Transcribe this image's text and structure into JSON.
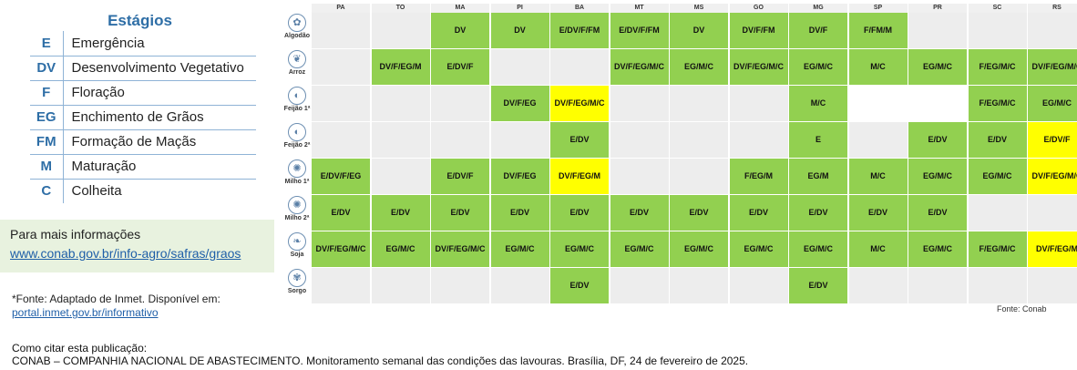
{
  "legend": {
    "title": "Estágios",
    "items": [
      {
        "code": "E",
        "name": "Emergência"
      },
      {
        "code": "DV",
        "name": "Desenvolvimento Vegetativo"
      },
      {
        "code": "F",
        "name": "Floração"
      },
      {
        "code": "EG",
        "name": "Enchimento de Grãos"
      },
      {
        "code": "FM",
        "name": "Formação de Maçãs"
      },
      {
        "code": "M",
        "name": "Maturação"
      },
      {
        "code": "C",
        "name": "Colheita"
      }
    ]
  },
  "info": {
    "title": "Para mais informações",
    "link": "www.conab.gov.br/info-agro/safras/graos"
  },
  "source_note": {
    "text": "*Fonte: Adaptado de Inmet. Disponível em:",
    "link": "portal.inmet.gov.br/informativo"
  },
  "citation": {
    "label": "Como citar esta publicação:",
    "text": "CONAB – COMPANHIA NACIONAL DE ABASTECIMENTO. Monitoramento semanal das condições das lavouras. Brasília, DF, 24 de fevereiro de 2025."
  },
  "fonte": "Fonte: Conab",
  "colors": {
    "green": "#92d050",
    "yellow": "#ffff00",
    "grey": "#ededed",
    "accent": "#2e6ea6"
  },
  "states": [
    "PA",
    "TO",
    "MA",
    "PI",
    "BA",
    "MT",
    "MS",
    "GO",
    "MG",
    "SP",
    "PR",
    "SC",
    "RS"
  ],
  "crops": [
    {
      "name": "Algodão",
      "icon": "cotton-icon",
      "cells": [
        [
          "",
          ""
        ],
        [
          "",
          ""
        ],
        [
          "DV",
          "g"
        ],
        [
          "DV",
          "g"
        ],
        [
          "E/DV/F/FM",
          "g"
        ],
        [
          "E/DV/F/FM",
          "g"
        ],
        [
          "DV",
          "g"
        ],
        [
          "DV/F/FM",
          "g"
        ],
        [
          "DV/F",
          "g"
        ],
        [
          "F/FM/M",
          "g"
        ],
        [
          "",
          ""
        ],
        [
          "",
          ""
        ],
        [
          "",
          ""
        ]
      ]
    },
    {
      "name": "Arroz",
      "icon": "rice-icon",
      "cells": [
        [
          "",
          ""
        ],
        [
          "DV/F/EG/M",
          "g"
        ],
        [
          "E/DV/F",
          "g"
        ],
        [
          "",
          ""
        ],
        [
          "",
          ""
        ],
        [
          "DV/F/EG/M/C",
          "g"
        ],
        [
          "EG/M/C",
          "g"
        ],
        [
          "DV/F/EG/M/C",
          "g"
        ],
        [
          "EG/M/C",
          "g"
        ],
        [
          "M/C",
          "g"
        ],
        [
          "EG/M/C",
          "g"
        ],
        [
          "F/EG/M/C",
          "g"
        ],
        [
          "DV/F/EG/M/C",
          "g"
        ]
      ]
    },
    {
      "name": "Feijão 1ª",
      "icon": "bean-icon",
      "cells": [
        [
          "",
          ""
        ],
        [
          "",
          ""
        ],
        [
          "",
          ""
        ],
        [
          "DV/F/EG",
          "g"
        ],
        [
          "DV/F/EG/M/C",
          "y"
        ],
        [
          "",
          ""
        ],
        [
          "",
          ""
        ],
        [
          "",
          ""
        ],
        [
          "M/C",
          "g"
        ],
        [
          "",
          "w"
        ],
        [
          "",
          "w"
        ],
        [
          "F/EG/M/C",
          "g"
        ],
        [
          "EG/M/C",
          "g"
        ]
      ]
    },
    {
      "name": "Feijão 2ª",
      "icon": "bean-icon",
      "cells": [
        [
          "",
          ""
        ],
        [
          "",
          ""
        ],
        [
          "",
          ""
        ],
        [
          "",
          ""
        ],
        [
          "E/DV",
          "g"
        ],
        [
          "",
          ""
        ],
        [
          "",
          ""
        ],
        [
          "",
          ""
        ],
        [
          "E",
          "g"
        ],
        [
          "",
          ""
        ],
        [
          "E/DV",
          "g"
        ],
        [
          "E/DV",
          "g"
        ],
        [
          "E/DV/F",
          "y"
        ]
      ]
    },
    {
      "name": "Milho 1ª",
      "icon": "corn-icon",
      "cells": [
        [
          "E/DV/F/EG",
          "g"
        ],
        [
          "",
          ""
        ],
        [
          "E/DV/F",
          "g"
        ],
        [
          "DV/F/EG",
          "g"
        ],
        [
          "DV/F/EG/M",
          "y"
        ],
        [
          "",
          ""
        ],
        [
          "",
          ""
        ],
        [
          "F/EG/M",
          "g"
        ],
        [
          "EG/M",
          "g"
        ],
        [
          "M/C",
          "g"
        ],
        [
          "EG/M/C",
          "g"
        ],
        [
          "EG/M/C",
          "g"
        ],
        [
          "DV/F/EG/M/C",
          "y"
        ]
      ]
    },
    {
      "name": "Milho 2ª",
      "icon": "corn-icon",
      "cells": [
        [
          "E/DV",
          "g"
        ],
        [
          "E/DV",
          "g"
        ],
        [
          "E/DV",
          "g"
        ],
        [
          "E/DV",
          "g"
        ],
        [
          "E/DV",
          "g"
        ],
        [
          "E/DV",
          "g"
        ],
        [
          "E/DV",
          "g"
        ],
        [
          "E/DV",
          "g"
        ],
        [
          "E/DV",
          "g"
        ],
        [
          "E/DV",
          "g"
        ],
        [
          "E/DV",
          "g"
        ],
        [
          "",
          ""
        ],
        [
          "",
          ""
        ]
      ]
    },
    {
      "name": "Soja",
      "icon": "soy-icon",
      "cells": [
        [
          "DV/F/EG/M/C",
          "g"
        ],
        [
          "EG/M/C",
          "g"
        ],
        [
          "DV/F/EG/M/C",
          "g"
        ],
        [
          "EG/M/C",
          "g"
        ],
        [
          "EG/M/C",
          "g"
        ],
        [
          "EG/M/C",
          "g"
        ],
        [
          "EG/M/C",
          "g"
        ],
        [
          "EG/M/C",
          "g"
        ],
        [
          "EG/M/C",
          "g"
        ],
        [
          "M/C",
          "g"
        ],
        [
          "EG/M/C",
          "g"
        ],
        [
          "F/EG/M/C",
          "g"
        ],
        [
          "DV/F/EG/M",
          "y"
        ]
      ]
    },
    {
      "name": "Sorgo",
      "icon": "sorghum-icon",
      "cells": [
        [
          "",
          ""
        ],
        [
          "",
          ""
        ],
        [
          "",
          ""
        ],
        [
          "",
          ""
        ],
        [
          "E/DV",
          "g"
        ],
        [
          "",
          ""
        ],
        [
          "",
          ""
        ],
        [
          "",
          ""
        ],
        [
          "E/DV",
          "g"
        ],
        [
          "",
          ""
        ],
        [
          "",
          ""
        ],
        [
          "",
          ""
        ],
        [
          "",
          ""
        ]
      ]
    }
  ]
}
